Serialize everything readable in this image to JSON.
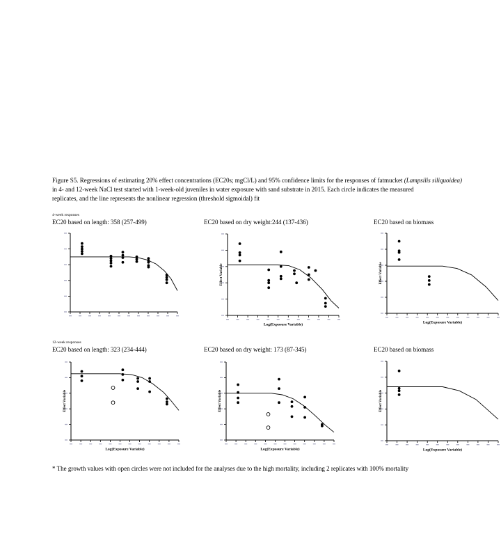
{
  "page": {
    "caption": {
      "line1": "Figure S5. Regressions of estimating 20% effect concentrations (EC20s; mgCl/L) and 95% confidence limits for the responses of fatmucket ",
      "line1_italic": "(Lampsilis siliquoidea)",
      "line2": "in 4- and 12-week NaCl test started with 1-week-old juveniles in water exposure with sand substrate in 2015. Each circle indicates the measured",
      "line3": "replicates, and the line represents the nonlinear regression (threshold sigmoidal) fit"
    },
    "section_labels": {
      "week4": "4-week responses",
      "week12": "12-week responses"
    },
    "footnote": "* The growth values with open circles were not included for the analyses due to the high mortality, including 2 replicates with 100% mortality"
  },
  "colors": {
    "ink": "#000000",
    "faint_tick_label": "#a8a8c0",
    "background": "#ffffff"
  },
  "chart_data": [
    {
      "type": "scatter",
      "title": "EC20 based on length: 358 (257-499)",
      "xlabel": "",
      "ylabel": "",
      "x_ticks": 12,
      "y_ticks": 6,
      "axis_units": "normalized 0-1 (tick labels illegible in source)",
      "points": [
        [
          0.11,
          0.87
        ],
        [
          0.11,
          0.83
        ],
        [
          0.11,
          0.8
        ],
        [
          0.11,
          0.77
        ],
        [
          0.11,
          0.74
        ],
        [
          0.38,
          0.71
        ],
        [
          0.38,
          0.68
        ],
        [
          0.38,
          0.65
        ],
        [
          0.38,
          0.62
        ],
        [
          0.38,
          0.58
        ],
        [
          0.49,
          0.76
        ],
        [
          0.49,
          0.72
        ],
        [
          0.49,
          0.69
        ],
        [
          0.49,
          0.63
        ],
        [
          0.62,
          0.7
        ],
        [
          0.62,
          0.67
        ],
        [
          0.62,
          0.64
        ],
        [
          0.73,
          0.68
        ],
        [
          0.73,
          0.65
        ],
        [
          0.73,
          0.63
        ],
        [
          0.73,
          0.59
        ],
        [
          0.73,
          0.57
        ],
        [
          0.9,
          0.47
        ],
        [
          0.9,
          0.44
        ],
        [
          0.9,
          0.41
        ],
        [
          0.9,
          0.37
        ]
      ],
      "open_points": [],
      "line": [
        [
          0,
          0.7
        ],
        [
          0.55,
          0.7
        ],
        [
          0.63,
          0.69
        ],
        [
          0.72,
          0.66
        ],
        [
          0.8,
          0.61
        ],
        [
          0.88,
          0.52
        ],
        [
          0.94,
          0.42
        ],
        [
          1.0,
          0.27
        ]
      ]
    },
    {
      "type": "scatter",
      "title": "EC20 based on dry weight:244 (137-436)",
      "xlabel": "Log(Exposure Variable)",
      "ylabel": "Effect Variable",
      "x_ticks": 12,
      "y_ticks": 6,
      "axis_units": "normalized 0-1 (tick labels illegible in source)",
      "points": [
        [
          0.11,
          0.88
        ],
        [
          0.11,
          0.77
        ],
        [
          0.11,
          0.74
        ],
        [
          0.11,
          0.67
        ],
        [
          0.37,
          0.56
        ],
        [
          0.37,
          0.43
        ],
        [
          0.37,
          0.4
        ],
        [
          0.37,
          0.34
        ],
        [
          0.48,
          0.78
        ],
        [
          0.48,
          0.6
        ],
        [
          0.48,
          0.48
        ],
        [
          0.48,
          0.45
        ],
        [
          0.6,
          0.55
        ],
        [
          0.6,
          0.51
        ],
        [
          0.62,
          0.4
        ],
        [
          0.73,
          0.59
        ],
        [
          0.73,
          0.5
        ],
        [
          0.73,
          0.44
        ],
        [
          0.79,
          0.55
        ],
        [
          0.88,
          0.21
        ],
        [
          0.88,
          0.15
        ],
        [
          0.88,
          0.11
        ]
      ],
      "open_points": [],
      "line": [
        [
          0,
          0.62
        ],
        [
          0.45,
          0.62
        ],
        [
          0.55,
          0.61
        ],
        [
          0.65,
          0.56
        ],
        [
          0.75,
          0.46
        ],
        [
          0.85,
          0.32
        ],
        [
          0.93,
          0.18
        ],
        [
          1.0,
          0.09
        ]
      ]
    },
    {
      "type": "scatter",
      "title": "EC20 based on biomass",
      "xlabel": "Log(Exposure Variable)",
      "ylabel": "Effect Variable",
      "x_ticks": 12,
      "y_ticks": 6,
      "axis_units": "normalized 0-1 (plot clipped at right page edge)",
      "points": [
        [
          0.11,
          0.9
        ],
        [
          0.11,
          0.78
        ],
        [
          0.11,
          0.76
        ],
        [
          0.11,
          0.67
        ],
        [
          0.38,
          0.46
        ],
        [
          0.38,
          0.41
        ],
        [
          0.38,
          0.36
        ]
      ],
      "open_points": [],
      "line": [
        [
          0,
          0.59
        ],
        [
          0.5,
          0.59
        ],
        [
          0.63,
          0.56
        ],
        [
          0.76,
          0.48
        ],
        [
          0.89,
          0.33
        ],
        [
          1.0,
          0.16
        ]
      ]
    },
    {
      "type": "scatter",
      "title": "EC20 based on length: 323 (234-444)",
      "xlabel": "Log(Exposure Variable)",
      "ylabel": "Effect Variable",
      "x_ticks": 12,
      "y_ticks": 6,
      "axis_units": "normalized 0-1 (tick labels illegible in source)",
      "points": [
        [
          0.1,
          0.88
        ],
        [
          0.1,
          0.82
        ],
        [
          0.1,
          0.76
        ],
        [
          0.48,
          0.9
        ],
        [
          0.48,
          0.84
        ],
        [
          0.48,
          0.77
        ],
        [
          0.62,
          0.79
        ],
        [
          0.62,
          0.75
        ],
        [
          0.62,
          0.66
        ],
        [
          0.73,
          0.79
        ],
        [
          0.73,
          0.75
        ],
        [
          0.73,
          0.62
        ],
        [
          0.89,
          0.53
        ],
        [
          0.89,
          0.49
        ],
        [
          0.89,
          0.46
        ]
      ],
      "open_points": [
        [
          0.39,
          0.67
        ],
        [
          0.39,
          0.48
        ]
      ],
      "line": [
        [
          0,
          0.85
        ],
        [
          0.45,
          0.85
        ],
        [
          0.56,
          0.84
        ],
        [
          0.66,
          0.8
        ],
        [
          0.76,
          0.72
        ],
        [
          0.86,
          0.61
        ],
        [
          0.93,
          0.5
        ],
        [
          1.0,
          0.38
        ]
      ]
    },
    {
      "type": "scatter",
      "title": "EC20 based on dry weight: 173 (87-345)",
      "xlabel": "Log(Exposure Variable)",
      "ylabel": "Effect Variable",
      "x_ticks": 12,
      "y_ticks": 6,
      "axis_units": "normalized 0-1 (tick labels illegible in source)",
      "points": [
        [
          0.11,
          0.71
        ],
        [
          0.11,
          0.61
        ],
        [
          0.11,
          0.54
        ],
        [
          0.11,
          0.48
        ],
        [
          0.49,
          0.78
        ],
        [
          0.49,
          0.66
        ],
        [
          0.49,
          0.48
        ],
        [
          0.61,
          0.49
        ],
        [
          0.61,
          0.43
        ],
        [
          0.61,
          0.3
        ],
        [
          0.73,
          0.55
        ],
        [
          0.73,
          0.42
        ],
        [
          0.73,
          0.29
        ],
        [
          0.89,
          0.2
        ],
        [
          0.89,
          0.18
        ]
      ],
      "open_points": [
        [
          0.39,
          0.33
        ],
        [
          0.39,
          0.16
        ]
      ],
      "line": [
        [
          0,
          0.6
        ],
        [
          0.42,
          0.6
        ],
        [
          0.52,
          0.58
        ],
        [
          0.62,
          0.53
        ],
        [
          0.72,
          0.44
        ],
        [
          0.82,
          0.32
        ],
        [
          0.92,
          0.19
        ],
        [
          1.0,
          0.1
        ]
      ]
    },
    {
      "type": "scatter",
      "title": "EC20 based on biomass",
      "xlabel": "Log(Exposure Variable)",
      "ylabel": "Effect Variable",
      "x_ticks": 12,
      "y_ticks": 6,
      "axis_units": "normalized 0-1 (plot clipped at right page edge)",
      "points": [
        [
          0.11,
          0.88
        ],
        [
          0.11,
          0.66
        ],
        [
          0.11,
          0.63
        ],
        [
          0.11,
          0.58
        ]
      ],
      "open_points": [],
      "line": [
        [
          0,
          0.68
        ],
        [
          0.5,
          0.68
        ],
        [
          0.65,
          0.63
        ],
        [
          0.8,
          0.52
        ],
        [
          1.0,
          0.27
        ]
      ]
    }
  ]
}
